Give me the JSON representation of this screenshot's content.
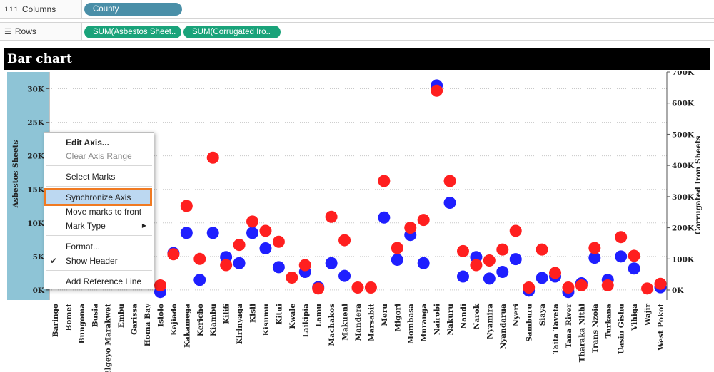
{
  "shelves": {
    "columns": {
      "icon": "iii",
      "label": "Columns",
      "pill": "County"
    },
    "rows": {
      "icon": "☰",
      "label": "Rows",
      "pills": [
        "SUM(Asbestos Sheet..",
        "SUM(Corrugated Iro.."
      ]
    }
  },
  "chart_title": "Bar chart",
  "context_menu": {
    "items": [
      {
        "label": "Edit Axis...",
        "style": "bold"
      },
      {
        "label": "Clear Axis Range",
        "style": "disabled"
      },
      {
        "label": "Select Marks",
        "style": "normal"
      },
      {
        "label": "Synchronize Axis",
        "style": "highlighted"
      },
      {
        "label": "Move marks to front",
        "style": "normal"
      },
      {
        "label": "Mark Type",
        "style": "submenu"
      },
      {
        "label": "Format...",
        "style": "normal"
      },
      {
        "label": "Show Header",
        "style": "checked"
      },
      {
        "label": "Add Reference Line",
        "style": "normal"
      }
    ]
  },
  "colors": {
    "asbestos": "#1f1fff",
    "iron": "#ff1f1f",
    "axis_band": "#8ec4d6"
  },
  "chart_data": {
    "type": "scatter",
    "title": "Bar chart",
    "x_field": "County",
    "categories": [
      "Baringo",
      "Bomet",
      "Bungoma",
      "Busia",
      "Elgeyo Marakwet",
      "Embu",
      "Garissa",
      "Homa Bay",
      "Isiolo",
      "Kajiado",
      "Kakamega",
      "Kericho",
      "Kiambu",
      "Kilifi",
      "Kirinyaga",
      "Kisii",
      "Kisumu",
      "Kitui",
      "Kwale",
      "Laikipia",
      "Lamu",
      "Machakos",
      "Makueni",
      "Mandera",
      "Marsabit",
      "Meru",
      "Migori",
      "Mombasa",
      "Muranga",
      "Nairobi",
      "Nakuru",
      "Nandi",
      "Narok",
      "Nyamira",
      "Nyandarua",
      "Nyeri",
      "Samburu",
      "Siaya",
      "Taita Taveta",
      "Tana River",
      "Tharaka Nithi",
      "Trans Nzoia",
      "Turkana",
      "Uasin Gishu",
      "Vihiga",
      "Wajir",
      "West Pokot"
    ],
    "left_axis": {
      "label": "Asbestos Sheets",
      "ticks": [
        "0K",
        "5K",
        "10K",
        "15K",
        "20K",
        "25K",
        "30K"
      ],
      "range": [
        -1500,
        32500
      ]
    },
    "right_axis": {
      "label": "Corrugated Iron Sheets",
      "ticks": [
        "0K",
        "100K",
        "200K",
        "300K",
        "400K",
        "500K",
        "600K",
        "700K"
      ],
      "range": [
        -32000,
        700000
      ]
    },
    "series": [
      {
        "name": "Asbestos Sheets",
        "axis": "left",
        "values": [
          null,
          null,
          null,
          null,
          null,
          null,
          null,
          null,
          -300,
          5500,
          8500,
          1500,
          8500,
          4900,
          4000,
          8500,
          6200,
          3400,
          null,
          2700,
          400,
          4000,
          2100,
          null,
          null,
          10800,
          4500,
          8200,
          4000,
          30500,
          13000,
          2000,
          4900,
          1700,
          2700,
          4600,
          -100,
          1800,
          2000,
          -300,
          1000,
          4800,
          1500,
          5000,
          3200,
          null,
          400
        ]
      },
      {
        "name": "Corrugated Iron Sheets",
        "axis": "right",
        "values": [
          null,
          null,
          null,
          null,
          null,
          null,
          null,
          null,
          15000,
          115000,
          270000,
          100000,
          425000,
          80000,
          145000,
          220000,
          190000,
          155000,
          40000,
          80000,
          5000,
          235000,
          160000,
          8000,
          8000,
          350000,
          135000,
          200000,
          225000,
          640000,
          350000,
          125000,
          80000,
          95000,
          130000,
          190000,
          8000,
          130000,
          55000,
          8000,
          15000,
          135000,
          15000,
          170000,
          110000,
          5000,
          20000
        ]
      }
    ]
  }
}
